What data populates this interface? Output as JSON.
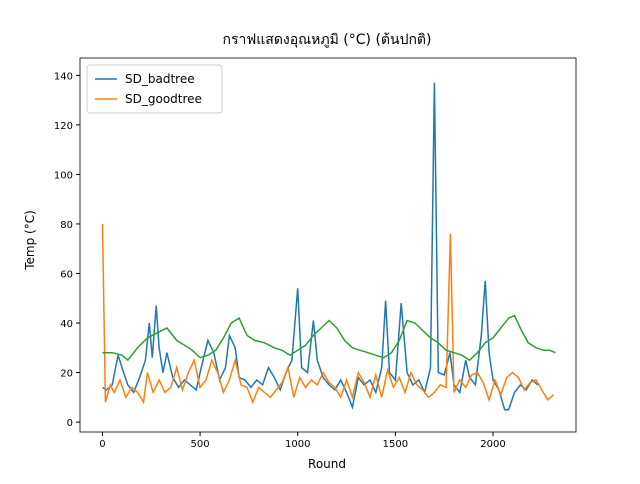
{
  "chart_data": {
    "type": "line",
    "title": "กราฟแสดงอุณหภูมิ (°C) (ต้นปกติ)",
    "x_label": "Round",
    "y_label": "Temp (°C)",
    "xlim": [
      -115,
      2425
    ],
    "xticks": [
      0,
      500,
      1000,
      1500,
      2000
    ],
    "ylim": [
      -4,
      147
    ],
    "yticks": [
      0,
      20,
      40,
      60,
      80,
      100,
      120,
      140
    ],
    "grid": false,
    "legend": "upper-left",
    "series": [
      {
        "name": "SD_badtree",
        "color": "#1f77b4",
        "x": [
          0,
          20,
          50,
          80,
          100,
          130,
          160,
          190,
          220,
          240,
          255,
          275,
          290,
          310,
          330,
          360,
          390,
          420,
          450,
          480,
          500,
          540,
          570,
          600,
          630,
          650,
          680,
          700,
          730,
          760,
          790,
          820,
          850,
          880,
          910,
          940,
          970,
          1000,
          1020,
          1050,
          1080,
          1100,
          1130,
          1160,
          1190,
          1220,
          1250,
          1280,
          1310,
          1340,
          1370,
          1400,
          1430,
          1450,
          1470,
          1500,
          1530,
          1560,
          1590,
          1620,
          1650,
          1680,
          1700,
          1720,
          1750,
          1780,
          1800,
          1830,
          1860,
          1880,
          1910,
          1940,
          1960,
          1980,
          2000,
          2030,
          2060,
          2080,
          2110,
          2140,
          2170,
          2200,
          2230
        ],
        "values": [
          14,
          13,
          15,
          27,
          22,
          15,
          12,
          18,
          25,
          40,
          26,
          47,
          30,
          20,
          28,
          18,
          14,
          17,
          15,
          13,
          20,
          33,
          28,
          17,
          22,
          35,
          30,
          18,
          17,
          14,
          17,
          15,
          22,
          18,
          13,
          20,
          25,
          54,
          22,
          20,
          41,
          25,
          18,
          15,
          13,
          17,
          12,
          6,
          18,
          15,
          17,
          12,
          22,
          49,
          20,
          17,
          48,
          20,
          15,
          17,
          12,
          22,
          137,
          20,
          19,
          28,
          15,
          12,
          25,
          18,
          15,
          35,
          57,
          28,
          17,
          13,
          5,
          5,
          12,
          15,
          13,
          17,
          15
        ]
      },
      {
        "name": "SD_goodtree",
        "color": "#ff7f0e",
        "x": [
          0,
          15,
          40,
          60,
          90,
          120,
          150,
          180,
          210,
          230,
          260,
          290,
          320,
          350,
          380,
          410,
          440,
          470,
          500,
          530,
          560,
          590,
          620,
          650,
          680,
          710,
          740,
          770,
          800,
          830,
          860,
          890,
          920,
          950,
          980,
          1010,
          1040,
          1070,
          1100,
          1130,
          1160,
          1190,
          1220,
          1250,
          1280,
          1310,
          1340,
          1370,
          1400,
          1430,
          1460,
          1490,
          1520,
          1550,
          1580,
          1610,
          1640,
          1670,
          1700,
          1730,
          1760,
          1782,
          1800,
          1830,
          1860,
          1890,
          1920,
          1950,
          1980,
          2010,
          2040,
          2070,
          2100,
          2130,
          2160,
          2190,
          2220,
          2250,
          2280,
          2310
        ],
        "values": [
          80,
          8,
          15,
          12,
          17,
          10,
          14,
          12,
          8,
          20,
          12,
          17,
          12,
          14,
          22,
          13,
          20,
          25,
          14,
          17,
          25,
          20,
          12,
          17,
          25,
          15,
          14,
          8,
          14,
          12,
          10,
          13,
          16,
          22,
          10,
          18,
          14,
          17,
          15,
          20,
          16,
          14,
          10,
          17,
          10,
          20,
          16,
          10,
          19,
          10,
          21,
          14,
          18,
          12,
          20,
          15,
          13,
          10,
          12,
          15,
          14,
          76,
          12,
          17,
          14,
          19,
          20,
          16,
          9,
          17,
          11,
          18,
          20,
          18,
          13,
          16,
          17,
          13,
          9,
          11
        ]
      },
      {
        "color": "#2ca02c",
        "x": [
          0,
          50,
          100,
          130,
          180,
          230,
          280,
          330,
          380,
          420,
          460,
          500,
          540,
          580,
          620,
          660,
          700,
          740,
          780,
          830,
          880,
          920,
          960,
          1000,
          1040,
          1080,
          1120,
          1160,
          1200,
          1240,
          1280,
          1320,
          1360,
          1400,
          1440,
          1480,
          1520,
          1560,
          1600,
          1640,
          1680,
          1720,
          1760,
          1800,
          1840,
          1880,
          1920,
          1960,
          2000,
          2040,
          2080,
          2110,
          2140,
          2180,
          2220,
          2260,
          2290,
          2320
        ],
        "values": [
          28,
          28,
          27,
          25,
          30,
          34,
          36,
          38,
          33,
          31,
          29,
          26,
          27,
          29,
          34,
          40,
          42,
          35,
          33,
          32,
          30,
          29,
          27,
          29,
          31,
          35,
          38,
          41,
          38,
          33,
          30,
          29,
          28,
          27,
          26,
          28,
          33,
          41,
          40,
          37,
          34,
          32,
          29,
          28,
          27,
          25,
          28,
          32,
          34,
          38,
          42,
          43,
          38,
          32,
          30,
          29,
          29,
          28
        ]
      }
    ]
  }
}
